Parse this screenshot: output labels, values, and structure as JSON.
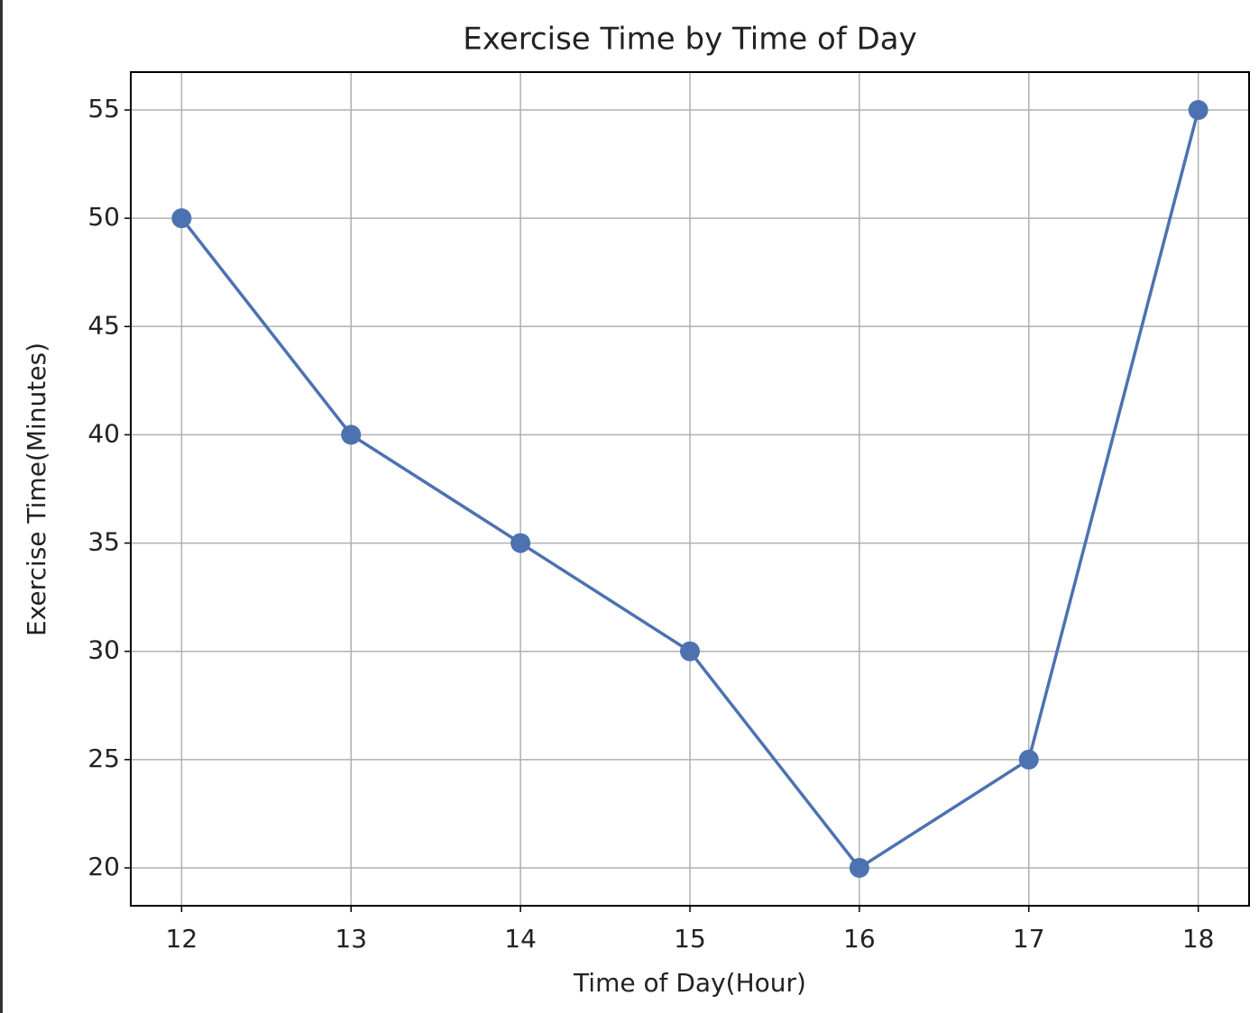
{
  "chart_data": {
    "type": "line",
    "title": "Exercise Time by Time of Day",
    "x_label": "Time of Day(Hour)",
    "y_label": "Exercise Time(Minutes)",
    "x": [
      12,
      13,
      14,
      15,
      16,
      17,
      18
    ],
    "series": [
      {
        "name": "Exercise Time",
        "color": "#4c72b0",
        "values": [
          50,
          40,
          35,
          30,
          20,
          25,
          55
        ]
      }
    ],
    "xlim": [
      11.7,
      18.3
    ],
    "ylim": [
      18.25,
      56.75
    ],
    "xticks": [
      12,
      13,
      14,
      15,
      16,
      17,
      18
    ],
    "yticks": [
      20,
      25,
      30,
      35,
      40,
      45,
      50,
      55
    ],
    "grid": true,
    "markers": true
  }
}
